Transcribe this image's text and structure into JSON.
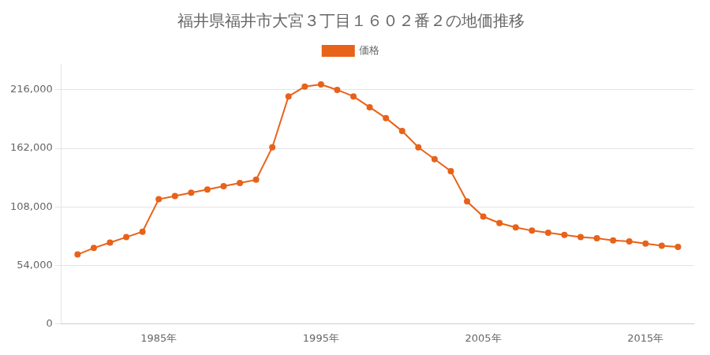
{
  "chart_data": {
    "type": "line",
    "title": "福井県福井市大宮３丁目１６０２番２の地価推移",
    "x": [
      1980,
      1981,
      1982,
      1983,
      1984,
      1985,
      1986,
      1987,
      1988,
      1989,
      1990,
      1991,
      1992,
      1993,
      1994,
      1995,
      1996,
      1997,
      1998,
      1999,
      2000,
      2001,
      2002,
      2003,
      2004,
      2005,
      2006,
      2007,
      2008,
      2009,
      2010,
      2011,
      2012,
      2013,
      2014,
      2015,
      2016,
      2017
    ],
    "series": [
      {
        "name": "価格",
        "color": "#e8621a",
        "marker": "circle",
        "values": [
          64000,
          70000,
          75000,
          80000,
          85000,
          115000,
          118000,
          121000,
          124000,
          127000,
          130000,
          133000,
          163000,
          210000,
          219000,
          221000,
          216000,
          210000,
          200000,
          190000,
          178000,
          163000,
          152000,
          141000,
          113000,
          99000,
          93000,
          89000,
          86000,
          84000,
          82000,
          80000,
          79000,
          77000,
          76000,
          74000,
          72000,
          71000
        ]
      }
    ],
    "xlim": [
      1979,
      2018
    ],
    "xticks": [
      {
        "value": 1985,
        "label": "1985年"
      },
      {
        "value": 1995,
        "label": "1995年"
      },
      {
        "value": 2005,
        "label": "2005年"
      },
      {
        "value": 2015,
        "label": "2015年"
      }
    ],
    "ylim": [
      0,
      240000
    ],
    "yticks": [
      0,
      {
        "value": 54000,
        "label": "54,000"
      },
      {
        "value": 108000,
        "label": "108,000"
      },
      {
        "value": 162000,
        "label": "162,000"
      },
      {
        "value": 216000,
        "label": "216,000"
      }
    ],
    "grid": "y",
    "legend": "top"
  }
}
